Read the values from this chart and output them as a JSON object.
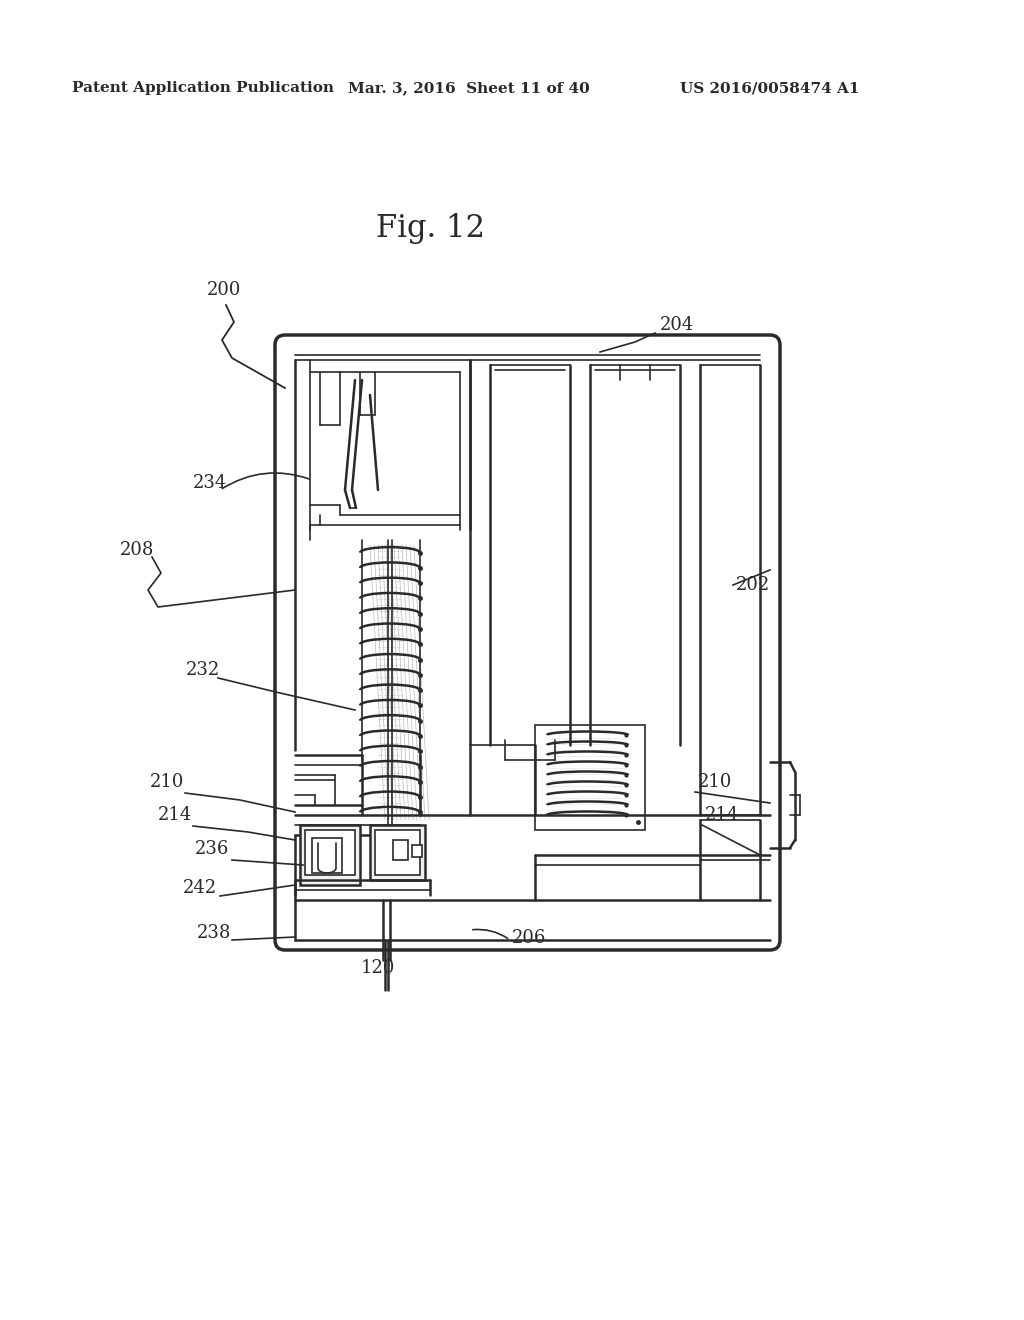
{
  "header_left": "Patent Application Publication",
  "header_mid": "Mar. 3, 2016  Sheet 11 of 40",
  "header_right": "US 2016/0058474 A1",
  "fig_title": "Fig. 12",
  "background_color": "#ffffff",
  "line_color": "#2a2a2a",
  "label_color": "#2a2a2a",
  "lw_outer": 2.5,
  "lw_main": 1.8,
  "lw_thin": 1.2,
  "label_fs": 13
}
